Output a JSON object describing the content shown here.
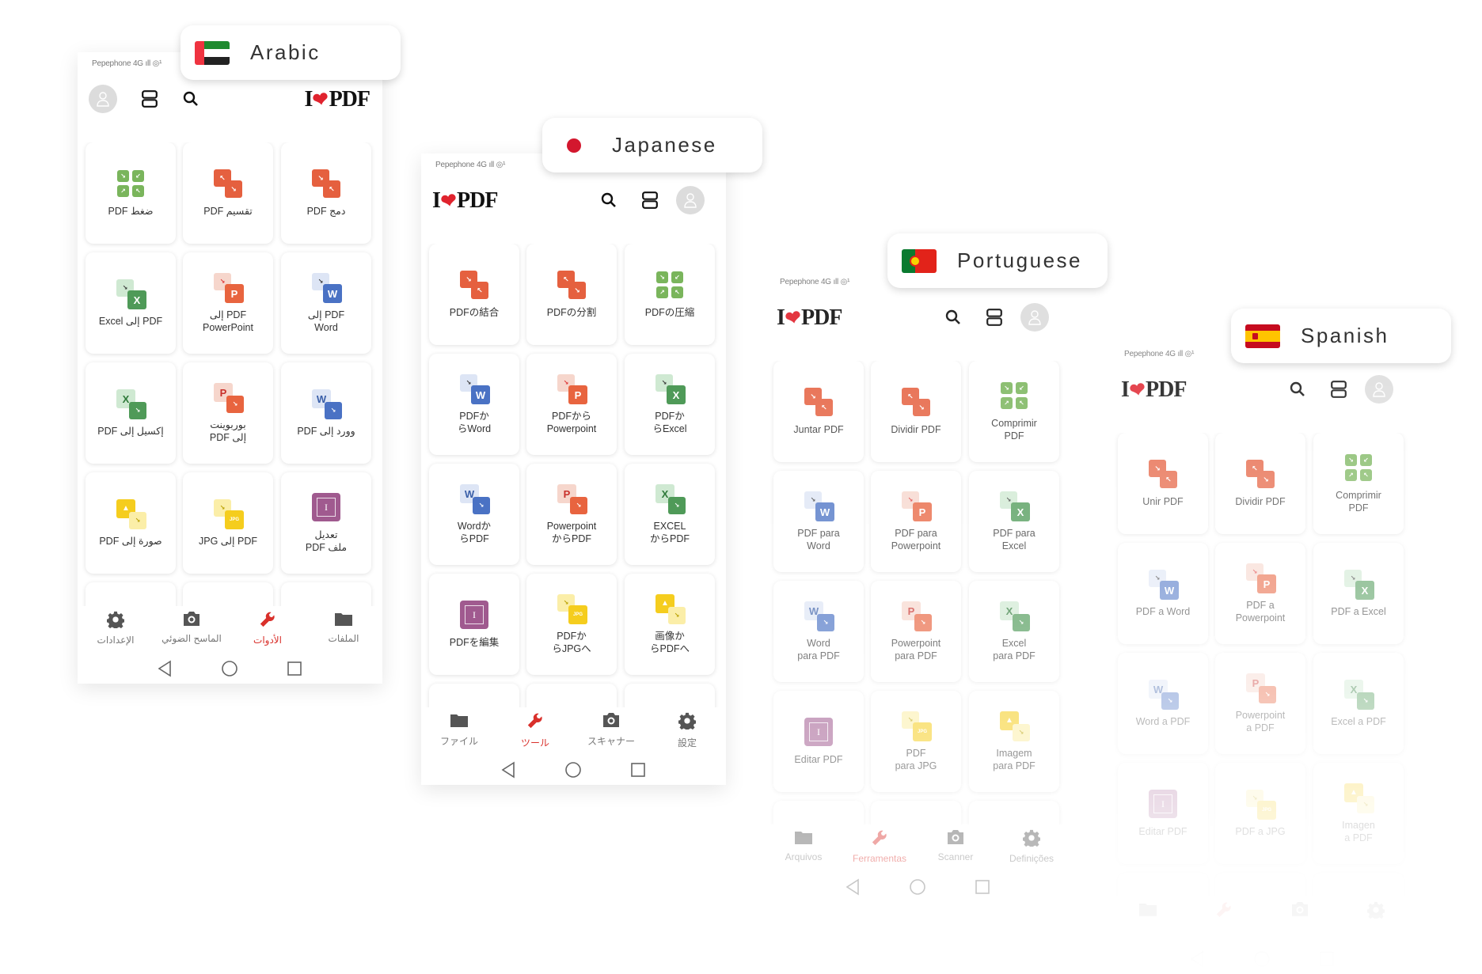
{
  "colors": {
    "accent": "#d9302b",
    "red_tool": "#e5603f",
    "green_tool": "#7ab55c",
    "word": "#4a72c4",
    "ppt": "#e8643f",
    "excel": "#4f9a58",
    "edit": "#a05a8f",
    "image": "#f5cd1e"
  },
  "logo": {
    "left": "I",
    "heart": "❤",
    "right": "PDF"
  },
  "phones": [
    {
      "id": "arabic",
      "language": "Arabic",
      "flag": "uae",
      "rtl": true,
      "status": "Pepephone 4G ıll ◎¹",
      "tools": [
        {
          "label": "ضغط PDF",
          "icon": "compress"
        },
        {
          "label": "تقسيم PDF",
          "icon": "split"
        },
        {
          "label": "دمج PDF",
          "icon": "merge"
        },
        {
          "label": "PDF إلى Excel",
          "icon": "to-excel"
        },
        {
          "label": "PDF إلى\nPowerPoint",
          "icon": "to-ppt"
        },
        {
          "label": "PDF إلى\nWord",
          "icon": "to-word"
        },
        {
          "label": "إكسيل إلى PDF",
          "icon": "from-excel"
        },
        {
          "label": "بوربوينت\nإلى PDF",
          "icon": "from-ppt"
        },
        {
          "label": "وورد إلى PDF",
          "icon": "from-word"
        },
        {
          "label": "صورة إلى PDF",
          "icon": "img-to-pdf"
        },
        {
          "label": "PDF إلى JPG",
          "icon": "to-jpg"
        },
        {
          "label": "تعديل\nملف PDF",
          "icon": "edit"
        }
      ],
      "nav": [
        {
          "label": "الإعدادات",
          "icon": "gear"
        },
        {
          "label": "الماسح الضوئي",
          "icon": "camera"
        },
        {
          "label": "الأدوات",
          "icon": "wrench",
          "active": true
        },
        {
          "label": "الملفات",
          "icon": "folder"
        }
      ]
    },
    {
      "id": "japanese",
      "language": "Japanese",
      "flag": "japan",
      "rtl": false,
      "status": "Pepephone 4G ıll ◎¹",
      "tools": [
        {
          "label": "PDFの結合",
          "icon": "merge"
        },
        {
          "label": "PDFの分割",
          "icon": "split"
        },
        {
          "label": "PDFの圧縮",
          "icon": "compress"
        },
        {
          "label": "PDFか\nらWord",
          "icon": "to-word"
        },
        {
          "label": "PDFから\nPowerpoint",
          "icon": "to-ppt"
        },
        {
          "label": "PDFか\nらExcel",
          "icon": "to-excel"
        },
        {
          "label": "Wordか\nらPDF",
          "icon": "from-word"
        },
        {
          "label": "Powerpoint\nからPDF",
          "icon": "from-ppt"
        },
        {
          "label": "EXCEL\nからPDF",
          "icon": "from-excel"
        },
        {
          "label": "PDFを編集",
          "icon": "edit"
        },
        {
          "label": "PDFか\nらJPGへ",
          "icon": "to-jpg"
        },
        {
          "label": "画像か\nらPDFへ",
          "icon": "img-to-pdf"
        }
      ],
      "nav": [
        {
          "label": "ファイル",
          "icon": "folder"
        },
        {
          "label": "ツール",
          "icon": "wrench",
          "active": true
        },
        {
          "label": "スキャナー",
          "icon": "camera"
        },
        {
          "label": "設定",
          "icon": "gear"
        }
      ]
    },
    {
      "id": "portuguese",
      "language": "Portuguese",
      "flag": "portugal",
      "rtl": false,
      "status": "Pepephone 4G ıll ◎¹",
      "tools": [
        {
          "label": "Juntar PDF",
          "icon": "merge"
        },
        {
          "label": "Dividir PDF",
          "icon": "split"
        },
        {
          "label": "Comprimir\nPDF",
          "icon": "compress"
        },
        {
          "label": "PDF para\nWord",
          "icon": "to-word"
        },
        {
          "label": "PDF para\nPowerpoint",
          "icon": "to-ppt"
        },
        {
          "label": "PDF para\nExcel",
          "icon": "to-excel"
        },
        {
          "label": "Word\npara PDF",
          "icon": "from-word"
        },
        {
          "label": "Powerpoint\npara PDF",
          "icon": "from-ppt"
        },
        {
          "label": "Excel\npara PDF",
          "icon": "from-excel"
        },
        {
          "label": "Editar PDF",
          "icon": "edit"
        },
        {
          "label": "PDF\npara JPG",
          "icon": "to-jpg"
        },
        {
          "label": "Imagem\npara PDF",
          "icon": "img-to-pdf"
        }
      ],
      "nav": [
        {
          "label": "Arquivos",
          "icon": "folder"
        },
        {
          "label": "Ferramentas",
          "icon": "wrench",
          "active": true
        },
        {
          "label": "Scanner",
          "icon": "camera"
        },
        {
          "label": "Definições",
          "icon": "gear"
        }
      ]
    },
    {
      "id": "spanish",
      "language": "Spanish",
      "flag": "spain",
      "rtl": false,
      "status": "Pepephone 4G ıll ◎¹",
      "tools": [
        {
          "label": "Unir PDF",
          "icon": "merge"
        },
        {
          "label": "Dividir PDF",
          "icon": "split"
        },
        {
          "label": "Comprimir\nPDF",
          "icon": "compress"
        },
        {
          "label": "PDF a Word",
          "icon": "to-word"
        },
        {
          "label": "PDF a\nPowerpoint",
          "icon": "to-ppt"
        },
        {
          "label": "PDF a Excel",
          "icon": "to-excel"
        },
        {
          "label": "Word a PDF",
          "icon": "from-word"
        },
        {
          "label": "Powerpoint\na PDF",
          "icon": "from-ppt"
        },
        {
          "label": "Excel a PDF",
          "icon": "from-excel"
        },
        {
          "label": "Editar PDF",
          "icon": "edit"
        },
        {
          "label": "PDF a JPG",
          "icon": "to-jpg"
        },
        {
          "label": "Imagen\na PDF",
          "icon": "img-to-pdf"
        }
      ],
      "nav": [
        {
          "icon": "folder"
        },
        {
          "icon": "wrench",
          "active": true
        },
        {
          "icon": "camera"
        },
        {
          "icon": "gear"
        }
      ]
    }
  ]
}
